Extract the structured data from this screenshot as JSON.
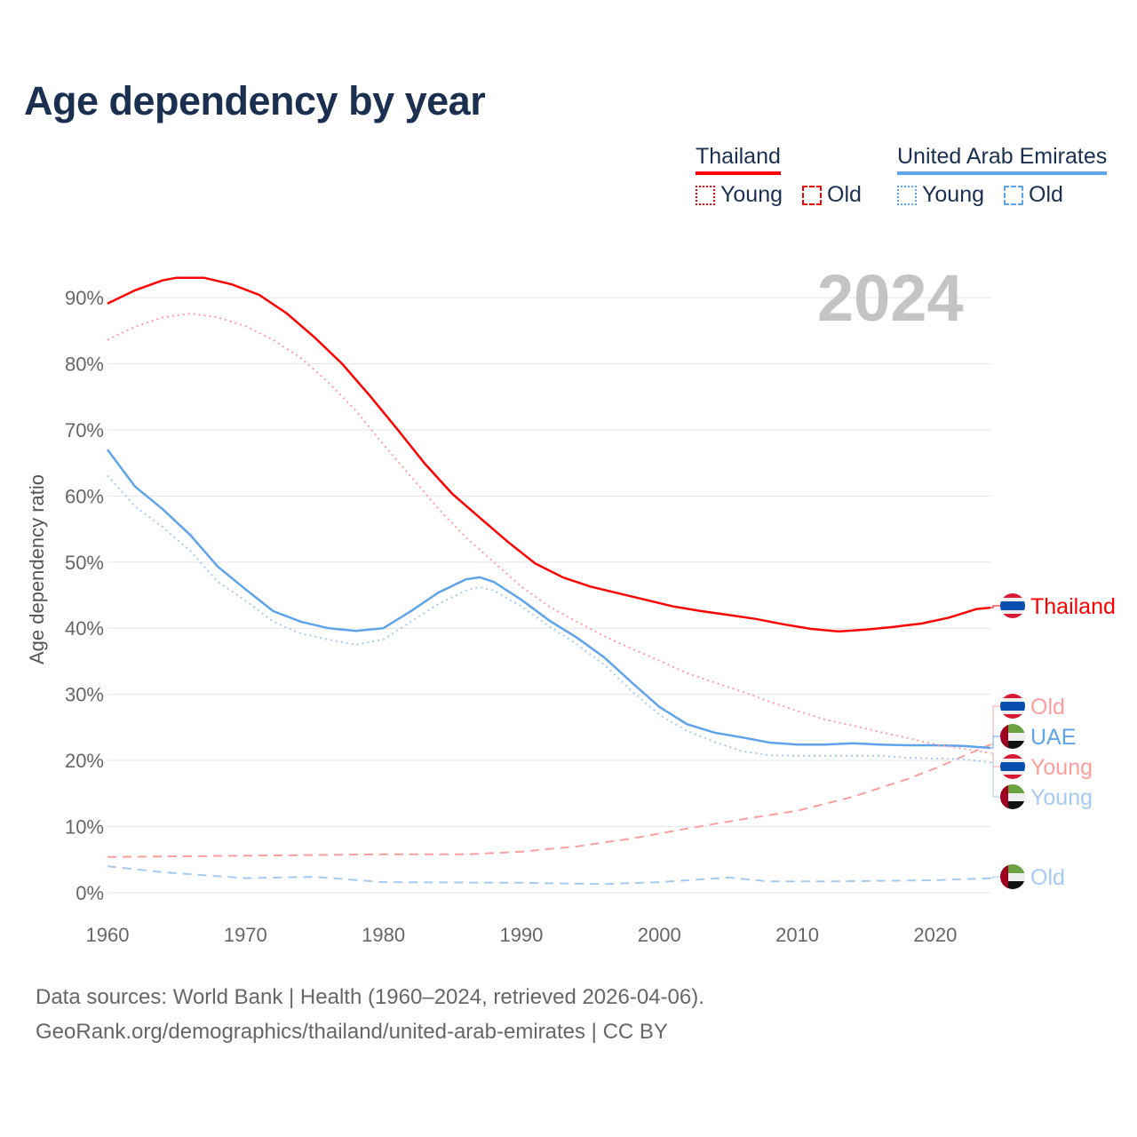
{
  "title": "Age dependency by year",
  "legend": {
    "countries": [
      {
        "name": "Thailand",
        "color": "#ff0000",
        "young_label": "Young",
        "old_label": "Old"
      },
      {
        "name": "United Arab Emirates",
        "color": "#5fa4ea",
        "young_label": "Young",
        "old_label": "Old"
      }
    ]
  },
  "year_display": "2024",
  "sources": {
    "line1": "Data sources: World Bank | Health (1960–2024, retrieved 2026-04-06).",
    "line2": "GeoRank.org/demographics/thailand/united-arab-emirates | CC BY"
  },
  "chart_data": {
    "type": "line",
    "title": "Age dependency by year",
    "xlabel": "",
    "ylabel": "Age dependency ratio",
    "xlim": [
      1960,
      2024
    ],
    "ylim": [
      0,
      90
    ],
    "x_ticks": [
      1960,
      1970,
      1980,
      1990,
      2000,
      2010,
      2020
    ],
    "y_ticks": [
      0,
      10,
      20,
      30,
      40,
      50,
      60,
      70,
      80,
      90
    ],
    "y_tick_suffix": "%",
    "grid": true,
    "series": [
      {
        "name": "Thailand",
        "end_label": "Thailand",
        "country": "thailand",
        "style": "solid",
        "color": "#ff0000",
        "points": [
          [
            1960,
            89.1
          ],
          [
            1962,
            91.1
          ],
          [
            1964,
            92.6
          ],
          [
            1965,
            93.0
          ],
          [
            1967,
            93.0
          ],
          [
            1969,
            92.0
          ],
          [
            1971,
            90.4
          ],
          [
            1973,
            87.6
          ],
          [
            1975,
            84.0
          ],
          [
            1977,
            80.0
          ],
          [
            1979,
            75.2
          ],
          [
            1981,
            70.1
          ],
          [
            1983,
            64.9
          ],
          [
            1985,
            60.3
          ],
          [
            1987,
            56.7
          ],
          [
            1989,
            53.1
          ],
          [
            1991,
            49.8
          ],
          [
            1993,
            47.7
          ],
          [
            1995,
            46.3
          ],
          [
            1997,
            45.3
          ],
          [
            1999,
            44.3
          ],
          [
            2001,
            43.3
          ],
          [
            2003,
            42.6
          ],
          [
            2005,
            42.0
          ],
          [
            2007,
            41.4
          ],
          [
            2009,
            40.6
          ],
          [
            2011,
            39.9
          ],
          [
            2013,
            39.5
          ],
          [
            2015,
            39.8
          ],
          [
            2017,
            40.2
          ],
          [
            2019,
            40.7
          ],
          [
            2021,
            41.6
          ],
          [
            2023,
            42.9
          ],
          [
            2024,
            43.1
          ]
        ]
      },
      {
        "name": "Thailand Old",
        "end_label": "Old",
        "country": "thailand",
        "style": "dashed",
        "color": "#ff9e9e",
        "points": [
          [
            1960,
            5.4
          ],
          [
            1970,
            5.6
          ],
          [
            1980,
            5.8
          ],
          [
            1986,
            5.8
          ],
          [
            1990,
            6.2
          ],
          [
            1994,
            7.0
          ],
          [
            1998,
            8.2
          ],
          [
            2002,
            9.7
          ],
          [
            2006,
            11.1
          ],
          [
            2010,
            12.4
          ],
          [
            2014,
            14.5
          ],
          [
            2018,
            17.2
          ],
          [
            2020,
            18.8
          ],
          [
            2022,
            20.6
          ],
          [
            2024,
            22.4
          ]
        ]
      },
      {
        "name": "UAE",
        "end_label": "UAE",
        "country": "uae",
        "style": "solid",
        "color": "#5fa4ea",
        "points": [
          [
            1960,
            67.0
          ],
          [
            1962,
            61.4
          ],
          [
            1964,
            58.0
          ],
          [
            1966,
            54.1
          ],
          [
            1968,
            49.3
          ],
          [
            1970,
            45.9
          ],
          [
            1972,
            42.6
          ],
          [
            1974,
            41.0
          ],
          [
            1976,
            40.0
          ],
          [
            1978,
            39.6
          ],
          [
            1980,
            40.0
          ],
          [
            1982,
            42.6
          ],
          [
            1984,
            45.4
          ],
          [
            1986,
            47.4
          ],
          [
            1987,
            47.7
          ],
          [
            1988,
            47.0
          ],
          [
            1990,
            44.3
          ],
          [
            1992,
            41.2
          ],
          [
            1994,
            38.6
          ],
          [
            1996,
            35.6
          ],
          [
            1998,
            31.8
          ],
          [
            2000,
            28.1
          ],
          [
            2002,
            25.5
          ],
          [
            2004,
            24.2
          ],
          [
            2006,
            23.5
          ],
          [
            2008,
            22.7
          ],
          [
            2010,
            22.4
          ],
          [
            2012,
            22.4
          ],
          [
            2014,
            22.6
          ],
          [
            2016,
            22.4
          ],
          [
            2018,
            22.3
          ],
          [
            2020,
            22.3
          ],
          [
            2022,
            22.2
          ],
          [
            2024,
            21.9
          ]
        ]
      },
      {
        "name": "Thailand Young",
        "end_label": "Young",
        "country": "thailand",
        "style": "dotted",
        "color": "#ff9e9e",
        "points": [
          [
            1960,
            83.6
          ],
          [
            1962,
            85.6
          ],
          [
            1964,
            87.0
          ],
          [
            1966,
            87.6
          ],
          [
            1968,
            87.0
          ],
          [
            1970,
            85.7
          ],
          [
            1972,
            83.6
          ],
          [
            1974,
            80.9
          ],
          [
            1976,
            77.2
          ],
          [
            1978,
            72.9
          ],
          [
            1980,
            67.8
          ],
          [
            1982,
            62.9
          ],
          [
            1984,
            58.0
          ],
          [
            1986,
            53.7
          ],
          [
            1988,
            50.0
          ],
          [
            1990,
            46.3
          ],
          [
            1992,
            43.3
          ],
          [
            1994,
            41.0
          ],
          [
            1996,
            38.8
          ],
          [
            1998,
            36.9
          ],
          [
            2000,
            35.1
          ],
          [
            2002,
            33.2
          ],
          [
            2004,
            31.8
          ],
          [
            2006,
            30.4
          ],
          [
            2008,
            28.9
          ],
          [
            2010,
            27.5
          ],
          [
            2012,
            26.2
          ],
          [
            2014,
            25.3
          ],
          [
            2016,
            24.3
          ],
          [
            2018,
            23.4
          ],
          [
            2020,
            22.4
          ],
          [
            2022,
            21.8
          ],
          [
            2024,
            21.1
          ]
        ]
      },
      {
        "name": "UAE Young",
        "end_label": "Young",
        "country": "uae",
        "style": "dotted",
        "color": "#a6cbf2",
        "points": [
          [
            1960,
            63.1
          ],
          [
            1962,
            58.4
          ],
          [
            1964,
            55.3
          ],
          [
            1966,
            51.7
          ],
          [
            1968,
            47.0
          ],
          [
            1970,
            44.2
          ],
          [
            1972,
            41.0
          ],
          [
            1974,
            39.2
          ],
          [
            1976,
            38.3
          ],
          [
            1978,
            37.5
          ],
          [
            1980,
            38.3
          ],
          [
            1982,
            41.0
          ],
          [
            1984,
            43.7
          ],
          [
            1986,
            45.7
          ],
          [
            1987,
            46.2
          ],
          [
            1988,
            45.7
          ],
          [
            1990,
            43.3
          ],
          [
            1992,
            40.3
          ],
          [
            1994,
            37.6
          ],
          [
            1996,
            34.5
          ],
          [
            1998,
            30.5
          ],
          [
            2000,
            26.9
          ],
          [
            2002,
            24.5
          ],
          [
            2004,
            22.8
          ],
          [
            2006,
            21.4
          ],
          [
            2008,
            20.8
          ],
          [
            2010,
            20.7
          ],
          [
            2014,
            20.7
          ],
          [
            2016,
            20.7
          ],
          [
            2018,
            20.4
          ],
          [
            2020,
            20.3
          ],
          [
            2022,
            20.2
          ],
          [
            2024,
            19.7
          ]
        ]
      },
      {
        "name": "UAE Old",
        "end_label": "Old",
        "country": "uae",
        "style": "dashed",
        "color": "#a6cbf2",
        "points": [
          [
            1960,
            4.0
          ],
          [
            1964,
            3.1
          ],
          [
            1970,
            2.2
          ],
          [
            1975,
            2.4
          ],
          [
            1980,
            1.6
          ],
          [
            1990,
            1.5
          ],
          [
            1996,
            1.3
          ],
          [
            2000,
            1.6
          ],
          [
            2005,
            2.3
          ],
          [
            2008,
            1.7
          ],
          [
            2012,
            1.7
          ],
          [
            2020,
            1.9
          ],
          [
            2024,
            2.2
          ]
        ]
      }
    ]
  }
}
